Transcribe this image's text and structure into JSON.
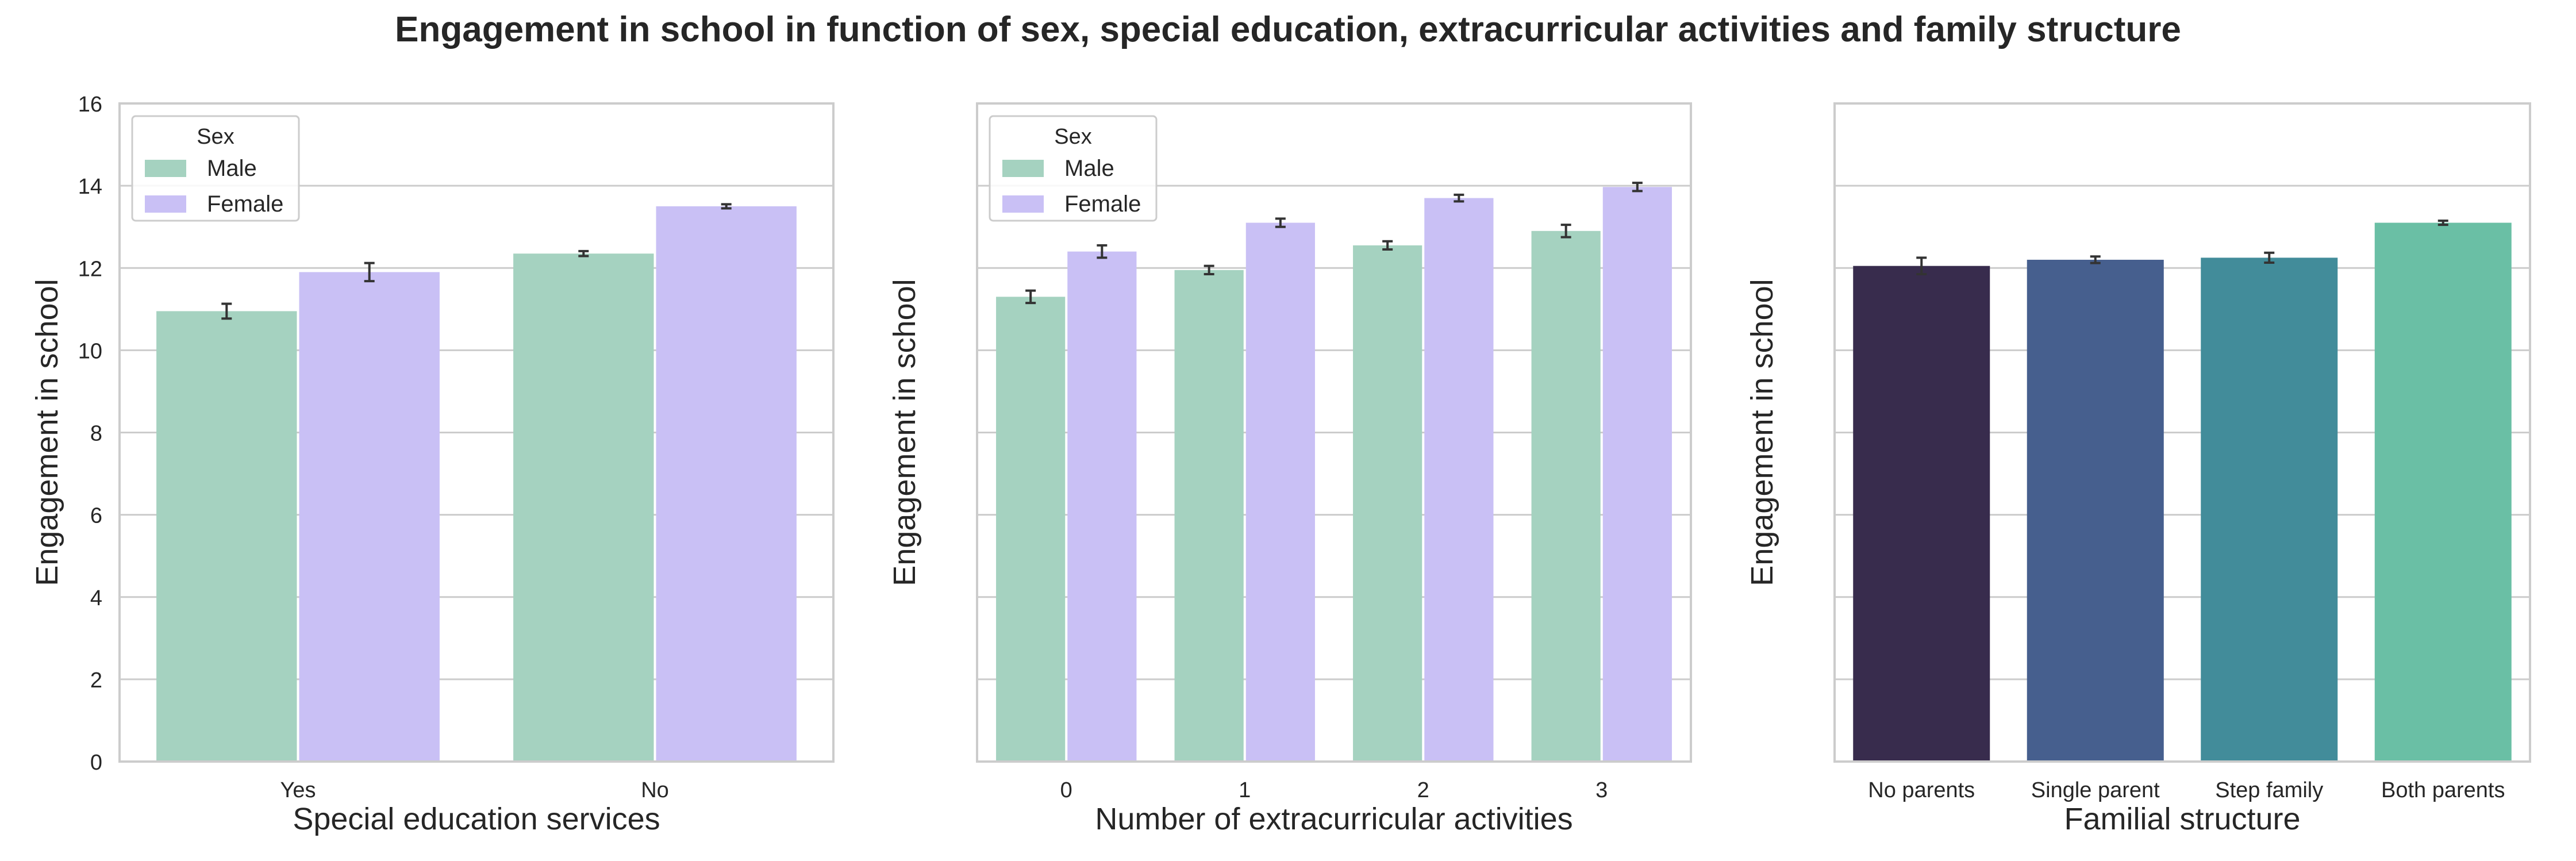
{
  "figure": {
    "title": "Engagement in school in function of sex, special education, extracurricular activities and family structure"
  },
  "colors": {
    "male": "#a5d2c0",
    "female": "#c9c0f5",
    "grid": "#cccccc",
    "frame": "#cccccc",
    "error_bar": "#333333",
    "family": [
      "#382c4d",
      "#465f8e",
      "#428c9a",
      "#6abfa5"
    ]
  },
  "chart_data": [
    {
      "type": "bar",
      "xlabel": "Special education services",
      "ylabel": "Engagement in school",
      "ylim": [
        0,
        16
      ],
      "yticks": [
        0,
        2,
        4,
        6,
        8,
        10,
        12,
        14,
        16
      ],
      "grid": true,
      "categories": [
        "Yes",
        "No"
      ],
      "legend": {
        "title": "Sex",
        "placement": "top-left"
      },
      "series": [
        {
          "name": "Male",
          "values": [
            10.95,
            12.35
          ],
          "errors": [
            0.18,
            0.06
          ]
        },
        {
          "name": "Female",
          "values": [
            11.9,
            13.5
          ],
          "errors": [
            0.22,
            0.05
          ]
        }
      ]
    },
    {
      "type": "bar",
      "xlabel": "Number of extracurricular activities",
      "ylabel": "Engagement in school",
      "ylim": [
        0,
        16
      ],
      "grid": true,
      "categories": [
        "0",
        "1",
        "2",
        "3"
      ],
      "legend": {
        "title": "Sex",
        "placement": "top-left"
      },
      "series": [
        {
          "name": "Male",
          "values": [
            11.3,
            11.95,
            12.55,
            12.9
          ],
          "errors": [
            0.15,
            0.1,
            0.1,
            0.15
          ]
        },
        {
          "name": "Female",
          "values": [
            12.4,
            13.1,
            13.7,
            13.97
          ],
          "errors": [
            0.15,
            0.1,
            0.08,
            0.1
          ]
        }
      ]
    },
    {
      "type": "bar",
      "xlabel": "Familial structure",
      "ylabel": "Engagement in school",
      "ylim": [
        0,
        16
      ],
      "grid": true,
      "categories": [
        "No parents",
        "Single parent",
        "Step family",
        "Both parents"
      ],
      "series": [
        {
          "values": [
            12.05,
            12.2,
            12.25,
            13.1
          ],
          "errors": [
            0.2,
            0.08,
            0.12,
            0.05
          ]
        }
      ]
    }
  ]
}
